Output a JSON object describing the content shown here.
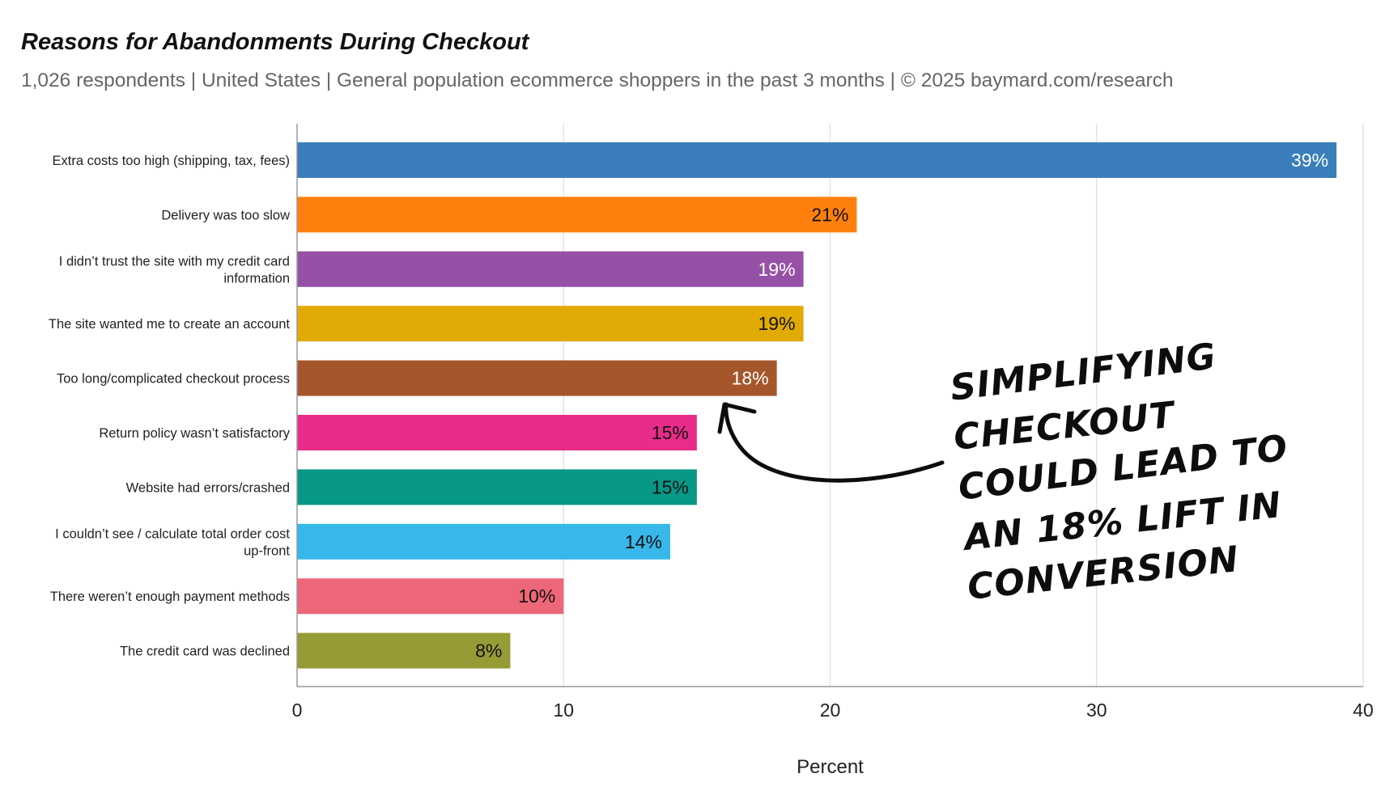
{
  "chart_data": {
    "type": "bar",
    "orientation": "horizontal",
    "title": "Reasons for Abandonments During Checkout",
    "subtitle": "1,026 respondents  |  United States  |  General population ecommerce shoppers in the past 3 months | © 2025 baymard.com/research",
    "xlabel": "Percent",
    "ylabel": "",
    "xlim": [
      0,
      40
    ],
    "xticks": [
      0,
      10,
      20,
      30,
      40
    ],
    "grid": true,
    "categories": [
      [
        "Extra costs too high (shipping, tax, fees)"
      ],
      [
        "Delivery was too slow"
      ],
      [
        "I didn’t trust the site with my credit card",
        "information"
      ],
      [
        "The site wanted me to create an account"
      ],
      [
        "Too long/complicated checkout process"
      ],
      [
        "Return policy wasn’t satisfactory"
      ],
      [
        "Website had errors/crashed"
      ],
      [
        "I couldn’t see / calculate total order cost",
        "up-front"
      ],
      [
        "There weren’t enough payment methods"
      ],
      [
        "The credit card was declined"
      ]
    ],
    "values": [
      39,
      21,
      19,
      19,
      18,
      15,
      15,
      14,
      10,
      8
    ],
    "data_labels": [
      "39%",
      "21%",
      "19%",
      "19%",
      "18%",
      "15%",
      "15%",
      "14%",
      "10%",
      "8%"
    ],
    "colors": [
      "#3a7ebb",
      "#ff7f0e",
      "#9651a6",
      "#e2aa05",
      "#a6562b",
      "#e92c8a",
      "#079886",
      "#37b7ea",
      "#ee6679",
      "#979b36"
    ],
    "label_colors": [
      "#ffffff",
      "#111111",
      "#ffffff",
      "#111111",
      "#ffffff",
      "#111111",
      "#111111",
      "#111111",
      "#111111",
      "#111111"
    ],
    "annotation": {
      "lines": [
        "SIMPLIFYING",
        "CHECKOUT",
        "COULD LEAD TO",
        "AN 18% LIFT IN",
        "CONVERSION"
      ],
      "points_to": "Too long/complicated checkout process"
    }
  }
}
